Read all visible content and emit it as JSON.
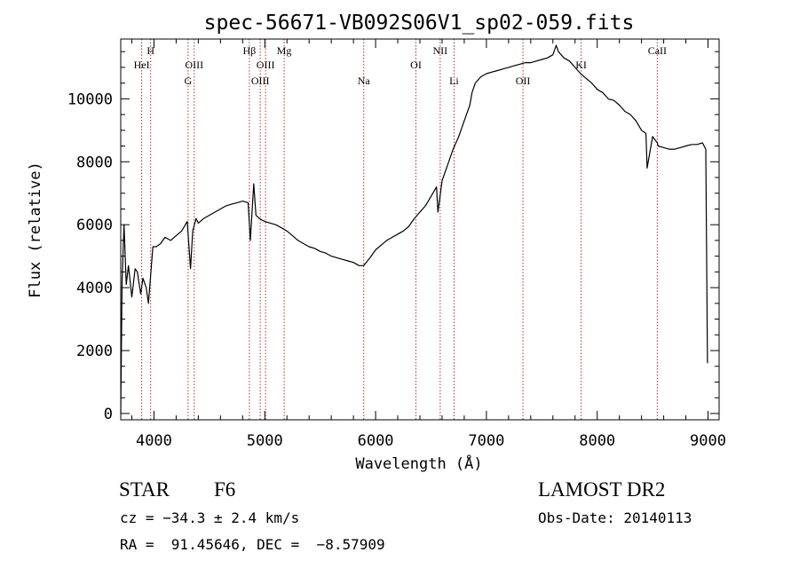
{
  "chart_data": {
    "type": "line",
    "title": "spec-56671-VB092S06V1_sp02-059.fits",
    "xlabel": "Wavelength (Å)",
    "ylabel": "Flux (relative)",
    "xlim": [
      3700,
      9100
    ],
    "ylim": [
      -200,
      11900
    ],
    "x_ticks": [
      4000,
      5000,
      6000,
      7000,
      8000,
      9000
    ],
    "y_ticks": [
      0,
      2000,
      4000,
      6000,
      8000,
      10000
    ],
    "grid": false,
    "line_color": "#000000",
    "marker_color": "#b03030",
    "spectral_lines": [
      {
        "label": "HeI",
        "wavelength": 3889,
        "row": 2
      },
      {
        "label": "H",
        "wavelength": 3970,
        "row": 1
      },
      {
        "label": "G",
        "wavelength": 4308,
        "row": 3
      },
      {
        "label": "OIII",
        "wavelength": 4363,
        "row": 2
      },
      {
        "label": "Hβ",
        "wavelength": 4861,
        "row": 1
      },
      {
        "label": "OIII",
        "wavelength": 4959,
        "row": 3
      },
      {
        "label": "OIII",
        "wavelength": 5007,
        "row": 2
      },
      {
        "label": "Mg",
        "wavelength": 5175,
        "row": 1
      },
      {
        "label": "Na",
        "wavelength": 5893,
        "row": 3
      },
      {
        "label": "OI",
        "wavelength": 6364,
        "row": 2
      },
      {
        "label": "NII",
        "wavelength": 6583,
        "row": 1
      },
      {
        "label": "Li",
        "wavelength": 6708,
        "row": 3
      },
      {
        "label": "OII",
        "wavelength": 7330,
        "row": 3
      },
      {
        "label": "KI",
        "wavelength": 7855,
        "row": 2
      },
      {
        "label": "CaII",
        "wavelength": 8542,
        "row": 1
      }
    ],
    "series": [
      {
        "x": [
          3700,
          3712,
          3730,
          3750,
          3770,
          3800,
          3830,
          3850,
          3880,
          3900,
          3930,
          3950,
          3970,
          3990,
          4020,
          4060,
          4100,
          4150,
          4200,
          4250,
          4300,
          4330,
          4350,
          4380,
          4400,
          4450,
          4500,
          4550,
          4600,
          4650,
          4700,
          4750,
          4800,
          4850,
          4870,
          4900,
          4920,
          4950,
          5000,
          5050,
          5100,
          5150,
          5200,
          5250,
          5300,
          5350,
          5400,
          5450,
          5500,
          5550,
          5600,
          5650,
          5700,
          5750,
          5800,
          5850,
          5893,
          5950,
          6000,
          6050,
          6100,
          6150,
          6200,
          6250,
          6300,
          6350,
          6400,
          6450,
          6500,
          6550,
          6563,
          6600,
          6650,
          6700,
          6750,
          6800,
          6850,
          6870,
          6900,
          6950,
          7000,
          7050,
          7100,
          7150,
          7200,
          7250,
          7300,
          7350,
          7400,
          7450,
          7500,
          7550,
          7600,
          7630,
          7650,
          7700,
          7750,
          7800,
          7850,
          7900,
          7950,
          8000,
          8050,
          8100,
          8150,
          8200,
          8250,
          8300,
          8350,
          8400,
          8440,
          8450,
          8500,
          8542,
          8550,
          8600,
          8650,
          8700,
          8750,
          8800,
          8850,
          8900,
          8950,
          8980,
          8995
        ],
        "y": [
          0,
          4200,
          6000,
          4100,
          4700,
          3700,
          4600,
          4500,
          3800,
          4300,
          4000,
          3500,
          4400,
          5300,
          5300,
          5400,
          5600,
          5500,
          5650,
          5800,
          6100,
          4600,
          5800,
          6200,
          6050,
          6200,
          6300,
          6400,
          6500,
          6600,
          6650,
          6700,
          6750,
          6700,
          5500,
          7300,
          6300,
          6200,
          6100,
          6050,
          6000,
          5900,
          5800,
          5650,
          5500,
          5400,
          5300,
          5250,
          5150,
          5100,
          5000,
          4950,
          4900,
          4850,
          4800,
          4700,
          4700,
          4950,
          5200,
          5350,
          5500,
          5600,
          5700,
          5800,
          5950,
          6200,
          6400,
          6600,
          6900,
          7200,
          6400,
          7400,
          7900,
          8400,
          8800,
          9300,
          9800,
          10200,
          10500,
          10700,
          10800,
          10850,
          10900,
          10950,
          11000,
          11050,
          11100,
          11150,
          11150,
          11200,
          11250,
          11300,
          11400,
          11700,
          11500,
          11300,
          11200,
          11000,
          10800,
          10650,
          10500,
          10300,
          10200,
          10000,
          9950,
          9800,
          9600,
          9500,
          9300,
          9000,
          8900,
          7800,
          8800,
          8600,
          8500,
          8450,
          8400,
          8400,
          8450,
          8500,
          8550,
          8550,
          8600,
          8400,
          1600
        ]
      }
    ]
  },
  "footer": {
    "object_class": "STAR",
    "subclass": "F6",
    "survey": "LAMOST DR2",
    "redshift": "cz = −34.3 ± 2.4 km/s",
    "obs_date": "Obs-Date: 20140113",
    "coords": "RA =  91.45646, DEC =  −8.57909"
  }
}
